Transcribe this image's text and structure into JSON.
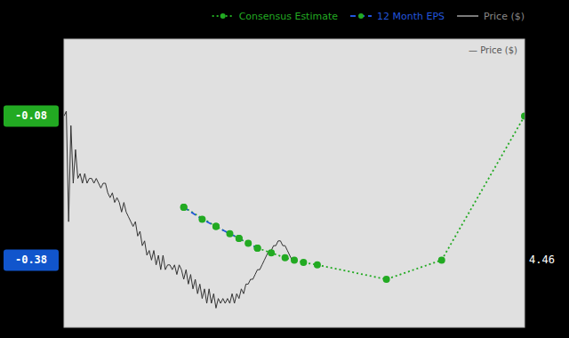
{
  "chart_data": {
    "type": "line",
    "xlim": [
      0,
      100
    ],
    "ylim": [
      -0.52,
      0.08
    ],
    "grid": false,
    "tick_labels": false,
    "legend": "upper right",
    "series": [
      {
        "name": "Consensus Estimate",
        "color": "#22aa22",
        "line_style": "dotted",
        "marker": "circle",
        "x": [
          26,
          33,
          38,
          42,
          45,
          48,
          50,
          52,
          55,
          70,
          82,
          100
        ],
        "values": [
          -0.27,
          -0.31,
          -0.335,
          -0.355,
          -0.365,
          -0.375,
          -0.38,
          -0.385,
          -0.39,
          -0.42,
          -0.38,
          -0.08
        ]
      },
      {
        "name": "12 Month EPS",
        "color": "#2255dd",
        "line_style": "dashed",
        "marker": "circle",
        "colors": [
          "#22aa22",
          "#22aa22",
          "#22aa22",
          "#22aa22",
          "#22aa22",
          "#22aa22",
          "#22aa22"
        ],
        "x": [
          26,
          30,
          33,
          36,
          38,
          40,
          42
        ],
        "values": [
          -0.27,
          -0.295,
          -0.31,
          -0.325,
          -0.335,
          -0.345,
          -0.355
        ]
      },
      {
        "name": "Price ($)",
        "color": "#333333",
        "line_style": "solid",
        "marker": "none",
        "x": [
          0,
          0.5,
          1,
          1.5,
          2,
          2.5,
          3,
          3.5,
          4,
          4.5,
          5,
          5.5,
          6,
          6.5,
          7,
          7.5,
          8,
          8.5,
          9,
          9.5,
          10,
          10.5,
          11,
          11.5,
          12,
          12.5,
          13,
          13.5,
          14,
          14.5,
          15,
          15.5,
          16,
          16.5,
          17,
          17.5,
          18,
          18.5,
          19,
          19.5,
          20,
          20.5,
          21,
          21.5,
          22,
          22.5,
          23,
          23.5,
          24,
          24.5,
          25,
          25.5,
          26,
          26.5,
          27,
          27.5,
          28,
          28.5,
          29,
          29.5,
          30,
          30.5,
          31,
          31.5,
          32,
          32.5,
          33,
          33.5,
          34,
          34.5,
          35,
          35.5,
          36,
          36.5,
          37,
          37.5,
          38,
          38.5,
          39,
          39.5,
          40,
          40.5,
          41,
          41.5,
          42,
          42.5,
          43,
          43.5,
          44,
          44.5,
          45,
          45.5,
          46,
          46.5,
          47,
          47.5,
          48,
          48.5,
          49,
          49.5,
          50
        ],
        "values": [
          -0.08,
          -0.07,
          -0.3,
          -0.1,
          -0.22,
          -0.15,
          -0.21,
          -0.2,
          -0.22,
          -0.2,
          -0.22,
          -0.21,
          -0.21,
          -0.22,
          -0.21,
          -0.22,
          -0.23,
          -0.22,
          -0.22,
          -0.24,
          -0.25,
          -0.24,
          -0.26,
          -0.25,
          -0.26,
          -0.28,
          -0.26,
          -0.28,
          -0.29,
          -0.3,
          -0.31,
          -0.3,
          -0.33,
          -0.32,
          -0.35,
          -0.34,
          -0.37,
          -0.36,
          -0.38,
          -0.36,
          -0.39,
          -0.37,
          -0.4,
          -0.37,
          -0.4,
          -0.39,
          -0.39,
          -0.4,
          -0.39,
          -0.41,
          -0.39,
          -0.4,
          -0.42,
          -0.4,
          -0.43,
          -0.41,
          -0.44,
          -0.42,
          -0.45,
          -0.43,
          -0.46,
          -0.44,
          -0.47,
          -0.44,
          -0.47,
          -0.45,
          -0.48,
          -0.46,
          -0.47,
          -0.46,
          -0.47,
          -0.46,
          -0.47,
          -0.45,
          -0.47,
          -0.45,
          -0.46,
          -0.44,
          -0.45,
          -0.43,
          -0.43,
          -0.42,
          -0.42,
          -0.41,
          -0.4,
          -0.4,
          -0.39,
          -0.38,
          -0.37,
          -0.36,
          -0.36,
          -0.35,
          -0.35,
          -0.34,
          -0.34,
          -0.35,
          -0.35,
          -0.36,
          -0.37,
          -0.38,
          -0.38
        ]
      }
    ],
    "annotations": [
      {
        "text": "-0.08",
        "x": 0,
        "y": -0.08,
        "color": "#22aa22"
      },
      {
        "text": "-0.38",
        "x": 0,
        "y": -0.38,
        "color": "#1155cc"
      },
      {
        "text": "4.46",
        "x": 100,
        "y": -0.38
      },
      {
        "text": "— Price ($)"
      }
    ]
  }
}
